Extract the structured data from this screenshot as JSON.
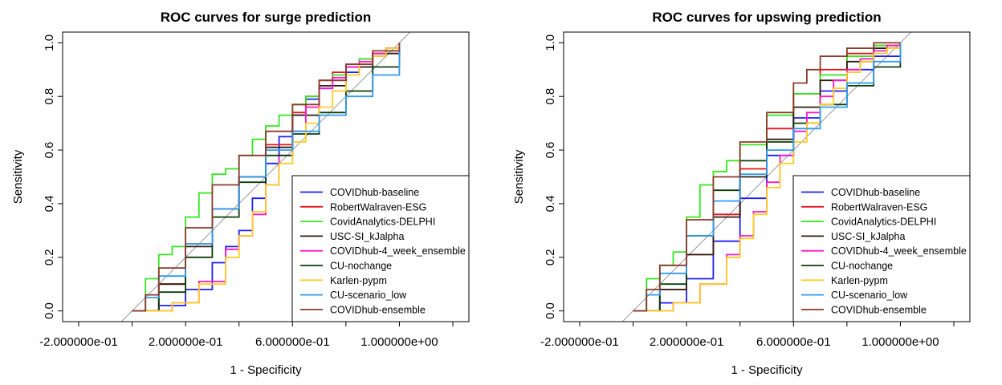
{
  "chart_data": [
    {
      "type": "line",
      "title": "ROC curves for surge prediction",
      "xlabel": "1 - Specificity",
      "ylabel": "Sensitivity",
      "xlim": [
        -0.26,
        1.26
      ],
      "ylim": [
        -0.04,
        1.04
      ],
      "xticks": [
        -0.2,
        0.2,
        0.6,
        1.0
      ],
      "xtick_labels": [
        "-2.000000e-01",
        "2.000000e-01",
        "6.000000e-01",
        "1.000000e+00"
      ],
      "xticks_minor": [
        0.0,
        0.4,
        0.8,
        1.2
      ],
      "yticks": [
        0.0,
        0.2,
        0.4,
        0.6,
        0.8,
        1.0
      ],
      "ytick_labels": [
        "0.0",
        "0.2",
        "0.4",
        "0.6",
        "0.8",
        "1.0"
      ],
      "grid": false,
      "legend_position": "bottom-right",
      "reference_line": true,
      "series": [
        {
          "name": "COVIDhub-baseline",
          "color": "#1e1eff",
          "x": [
            0,
            0.1,
            0.2,
            0.3,
            0.35,
            0.4,
            0.45,
            0.5,
            0.55,
            0.6,
            0.65,
            0.7,
            0.75,
            0.8,
            0.85,
            0.9,
            0.95,
            1.0
          ],
          "y": [
            0,
            0.02,
            0.08,
            0.18,
            0.24,
            0.3,
            0.42,
            0.55,
            0.65,
            0.73,
            0.79,
            0.83,
            0.86,
            0.89,
            0.92,
            0.95,
            0.97,
            1.0
          ]
        },
        {
          "name": "RobertWalraven-ESG",
          "color": "#e8131b",
          "x": [
            0,
            0.1,
            0.2,
            0.3,
            0.4,
            0.5,
            0.6,
            0.65,
            0.7,
            0.75,
            0.8,
            0.85,
            0.9,
            0.95,
            1.0
          ],
          "y": [
            0,
            0.1,
            0.25,
            0.38,
            0.5,
            0.62,
            0.74,
            0.8,
            0.86,
            0.89,
            0.92,
            0.94,
            0.96,
            0.98,
            1.0
          ]
        },
        {
          "name": "CovidAnalytics-DELPHI",
          "color": "#33e81e",
          "x": [
            0,
            0.05,
            0.1,
            0.15,
            0.2,
            0.25,
            0.3,
            0.35,
            0.4,
            0.45,
            0.5,
            0.55,
            0.6,
            0.65,
            0.7,
            0.75,
            0.8,
            0.85,
            0.9,
            0.95,
            1.0
          ],
          "y": [
            0,
            0.12,
            0.21,
            0.24,
            0.35,
            0.44,
            0.51,
            0.53,
            0.58,
            0.64,
            0.69,
            0.73,
            0.77,
            0.8,
            0.84,
            0.88,
            0.91,
            0.94,
            0.96,
            0.98,
            1.0
          ]
        },
        {
          "name": "USC-SI_kJalpha",
          "color": "#2e1c12",
          "x": [
            0,
            0.1,
            0.2,
            0.3,
            0.4,
            0.5,
            0.6,
            0.7,
            0.8,
            0.9,
            1.0
          ],
          "y": [
            0,
            0.1,
            0.24,
            0.38,
            0.5,
            0.61,
            0.73,
            0.84,
            0.91,
            0.96,
            1.0
          ]
        },
        {
          "name": "COVIDhub-4_week_ensemble",
          "color": "#ff17c8",
          "x": [
            0,
            0.15,
            0.25,
            0.35,
            0.4,
            0.45,
            0.5,
            0.55,
            0.6,
            0.65,
            0.7,
            0.75,
            0.8,
            0.85,
            0.9,
            0.95,
            1.0
          ],
          "y": [
            0,
            0.03,
            0.11,
            0.23,
            0.28,
            0.36,
            0.47,
            0.58,
            0.67,
            0.76,
            0.83,
            0.87,
            0.91,
            0.93,
            0.96,
            0.98,
            1.0
          ]
        },
        {
          "name": "CU-nochange",
          "color": "#0b3d0b",
          "x": [
            0,
            0.1,
            0.2,
            0.3,
            0.4,
            0.5,
            0.6,
            0.7,
            0.8,
            0.9,
            1.0
          ],
          "y": [
            0,
            0.07,
            0.2,
            0.35,
            0.48,
            0.58,
            0.66,
            0.74,
            0.82,
            0.91,
            1.0
          ]
        },
        {
          "name": "Karlen-pypm",
          "color": "#ffcc22",
          "x": [
            0,
            0.15,
            0.25,
            0.35,
            0.4,
            0.45,
            0.5,
            0.55,
            0.6,
            0.65,
            0.7,
            0.75,
            0.8,
            0.85,
            0.9,
            0.95,
            1.0
          ],
          "y": [
            0,
            0.03,
            0.1,
            0.2,
            0.28,
            0.37,
            0.47,
            0.55,
            0.63,
            0.7,
            0.76,
            0.82,
            0.88,
            0.92,
            0.95,
            0.98,
            1.0
          ]
        },
        {
          "name": "CU-scenario_low",
          "color": "#2f9bef",
          "x": [
            0,
            0.05,
            0.1,
            0.2,
            0.3,
            0.4,
            0.5,
            0.6,
            0.7,
            0.8,
            0.9,
            1.0
          ],
          "y": [
            0,
            0.05,
            0.13,
            0.25,
            0.38,
            0.5,
            0.6,
            0.67,
            0.73,
            0.8,
            0.88,
            1.0
          ]
        },
        {
          "name": "COVIDhub-ensemble",
          "color": "#8b3a2b",
          "x": [
            0,
            0.05,
            0.1,
            0.2,
            0.3,
            0.4,
            0.5,
            0.6,
            0.7,
            0.8,
            0.9,
            1.0
          ],
          "y": [
            0,
            0.06,
            0.16,
            0.31,
            0.47,
            0.58,
            0.67,
            0.77,
            0.86,
            0.92,
            0.97,
            1.0
          ]
        }
      ]
    },
    {
      "type": "line",
      "title": "ROC curves for upswing prediction",
      "xlabel": "1 - Specificity",
      "ylabel": "Sensitivity",
      "xlim": [
        -0.26,
        1.26
      ],
      "ylim": [
        -0.04,
        1.04
      ],
      "xticks": [
        -0.2,
        0.2,
        0.6,
        1.0
      ],
      "xtick_labels": [
        "-2.000000e-01",
        "2.000000e-01",
        "6.000000e-01",
        "1.000000e+00"
      ],
      "xticks_minor": [
        0.0,
        0.4,
        0.8,
        1.2
      ],
      "yticks": [
        0.0,
        0.2,
        0.4,
        0.6,
        0.8,
        1.0
      ],
      "ytick_labels": [
        "0.0",
        "0.2",
        "0.4",
        "0.6",
        "0.8",
        "1.0"
      ],
      "grid": false,
      "legend_position": "bottom-right",
      "reference_line": true,
      "series": [
        {
          "name": "COVIDhub-baseline",
          "color": "#1e1eff",
          "x": [
            0,
            0.1,
            0.2,
            0.3,
            0.4,
            0.5,
            0.6,
            0.7,
            0.8,
            0.9,
            1.0
          ],
          "y": [
            0,
            0.03,
            0.12,
            0.26,
            0.42,
            0.58,
            0.72,
            0.82,
            0.9,
            0.95,
            1.0
          ]
        },
        {
          "name": "RobertWalraven-ESG",
          "color": "#e8131b",
          "x": [
            0,
            0.1,
            0.2,
            0.3,
            0.4,
            0.5,
            0.6,
            0.7,
            0.8,
            0.9,
            1.0
          ],
          "y": [
            0,
            0.08,
            0.21,
            0.36,
            0.53,
            0.68,
            0.81,
            0.9,
            0.96,
            0.99,
            1.0
          ]
        },
        {
          "name": "CovidAnalytics-DELPHI",
          "color": "#33e81e",
          "x": [
            0,
            0.05,
            0.1,
            0.15,
            0.2,
            0.25,
            0.3,
            0.35,
            0.4,
            0.5,
            0.6,
            0.7,
            0.8,
            0.9,
            1.0
          ],
          "y": [
            0,
            0.12,
            0.17,
            0.22,
            0.35,
            0.47,
            0.52,
            0.56,
            0.62,
            0.73,
            0.81,
            0.88,
            0.95,
            0.99,
            1.0
          ]
        },
        {
          "name": "USC-SI_kJalpha",
          "color": "#2e1c12",
          "x": [
            0,
            0.1,
            0.2,
            0.3,
            0.4,
            0.5,
            0.6,
            0.7,
            0.8,
            0.9,
            1.0
          ],
          "y": [
            0,
            0.08,
            0.21,
            0.35,
            0.5,
            0.64,
            0.76,
            0.86,
            0.93,
            0.98,
            1.0
          ]
        },
        {
          "name": "COVIDhub-4_week_ensemble",
          "color": "#ff17c8",
          "x": [
            0,
            0.15,
            0.25,
            0.35,
            0.4,
            0.45,
            0.5,
            0.55,
            0.6,
            0.65,
            0.7,
            0.75,
            0.8,
            0.85,
            0.9,
            0.95,
            1.0
          ],
          "y": [
            0,
            0.03,
            0.1,
            0.21,
            0.28,
            0.37,
            0.48,
            0.58,
            0.67,
            0.74,
            0.8,
            0.86,
            0.9,
            0.94,
            0.97,
            0.99,
            1.0
          ]
        },
        {
          "name": "CU-nochange",
          "color": "#0b3d0b",
          "x": [
            0,
            0.1,
            0.2,
            0.3,
            0.4,
            0.5,
            0.6,
            0.7,
            0.8,
            0.9,
            1.0
          ],
          "y": [
            0,
            0.1,
            0.28,
            0.45,
            0.56,
            0.63,
            0.7,
            0.77,
            0.84,
            0.91,
            1.0
          ]
        },
        {
          "name": "Karlen-pypm",
          "color": "#ffcc22",
          "x": [
            0,
            0.15,
            0.25,
            0.35,
            0.4,
            0.45,
            0.5,
            0.55,
            0.6,
            0.65,
            0.7,
            0.75,
            0.8,
            0.85,
            0.9,
            0.95,
            1.0
          ],
          "y": [
            0,
            0.03,
            0.1,
            0.2,
            0.27,
            0.36,
            0.46,
            0.55,
            0.63,
            0.7,
            0.77,
            0.83,
            0.89,
            0.93,
            0.96,
            0.98,
            1.0
          ]
        },
        {
          "name": "CU-scenario_low",
          "color": "#2f9bef",
          "x": [
            0,
            0.05,
            0.1,
            0.2,
            0.3,
            0.4,
            0.5,
            0.6,
            0.7,
            0.8,
            0.9,
            1.0
          ],
          "y": [
            0,
            0.06,
            0.14,
            0.28,
            0.41,
            0.51,
            0.6,
            0.68,
            0.76,
            0.85,
            0.93,
            1.0
          ]
        },
        {
          "name": "COVIDhub-ensemble",
          "color": "#8b3a2b",
          "x": [
            0,
            0.05,
            0.1,
            0.2,
            0.3,
            0.4,
            0.5,
            0.6,
            0.65,
            0.7,
            0.8,
            0.9,
            1.0
          ],
          "y": [
            0,
            0.08,
            0.17,
            0.34,
            0.5,
            0.63,
            0.74,
            0.85,
            0.9,
            0.95,
            0.98,
            1.0,
            1.0
          ]
        }
      ]
    }
  ]
}
